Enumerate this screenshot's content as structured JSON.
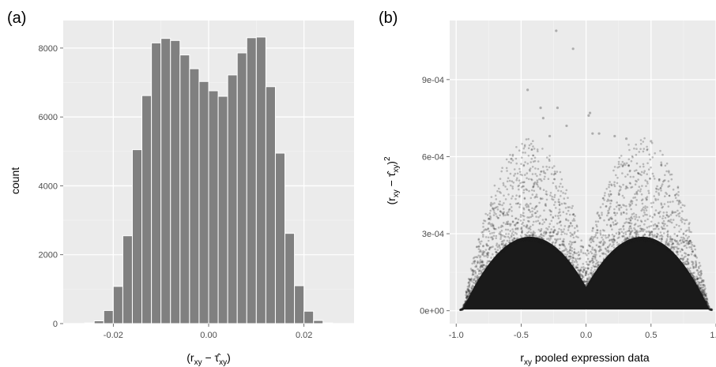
{
  "chart_data": [
    {
      "panel_tag": "(a)",
      "type": "bar",
      "ylabel": "count",
      "xlabel_parts": [
        "(r",
        "xy",
        " − ",
        "τ̂",
        "xy",
        ")"
      ],
      "xlim": [
        -0.0305,
        0.0305
      ],
      "ylim": [
        0,
        8800
      ],
      "xticks": [
        -0.02,
        0.0,
        0.02
      ],
      "xtick_labels": [
        "-0.02",
        "0.00",
        "0.02"
      ],
      "yticks": [
        0,
        2000,
        4000,
        6000,
        8000
      ],
      "ytick_labels": [
        "0",
        "2000",
        "4000",
        "6000",
        "8000"
      ],
      "bin_width": 0.002,
      "bin_centers": [
        -0.027,
        -0.025,
        -0.023,
        -0.021,
        -0.019,
        -0.017,
        -0.015,
        -0.013,
        -0.011,
        -0.009,
        -0.007,
        -0.005,
        -0.003,
        -0.001,
        0.001,
        0.003,
        0.005,
        0.007,
        0.009,
        0.011,
        0.013,
        0.015,
        0.017,
        0.019,
        0.021,
        0.023,
        0.025,
        0.027
      ],
      "values": [
        0,
        20,
        80,
        380,
        1080,
        2550,
        5050,
        6620,
        8150,
        8280,
        8220,
        7800,
        7400,
        7030,
        6760,
        6600,
        7220,
        7860,
        8300,
        8320,
        6880,
        4950,
        2620,
        1100,
        360,
        90,
        20,
        0
      ],
      "grid": true
    },
    {
      "panel_tag": "(b)",
      "type": "scatter",
      "ylabel_parts": [
        "(r",
        "xy",
        " − ",
        "τ̂",
        "xy",
        ")",
        "2"
      ],
      "xlabel_parts": [
        "r",
        "xy",
        "  pooled expression data"
      ],
      "xlim": [
        -1.05,
        1.0
      ],
      "ylim": [
        -5e-05,
        0.00113
      ],
      "xticks": [
        -1.0,
        -0.5,
        0.0,
        0.5,
        1.0
      ],
      "xtick_labels": [
        "-1.0",
        "-0.5",
        "0.0",
        "0.5",
        "1.0"
      ],
      "yticks": [
        0,
        0.0003,
        0.0006,
        0.0009
      ],
      "ytick_labels": [
        "0e+00",
        "3e-04",
        "6e-04",
        "9e-04"
      ],
      "outliers": [
        {
          "x": -0.23,
          "y": 0.00109
        },
        {
          "x": -0.1,
          "y": 0.00102
        },
        {
          "x": -0.45,
          "y": 0.00086
        },
        {
          "x": -0.35,
          "y": 0.00079
        },
        {
          "x": -0.22,
          "y": 0.00079
        },
        {
          "x": 0.03,
          "y": 0.00077
        },
        {
          "x": 0.02,
          "y": 0.00076
        },
        {
          "x": -0.33,
          "y": 0.00075
        },
        {
          "x": -0.15,
          "y": 0.00072
        },
        {
          "x": 0.1,
          "y": 0.00069
        },
        {
          "x": 0.22,
          "y": 0.00068
        },
        {
          "x": 0.31,
          "y": 0.00067
        },
        {
          "x": 0.5,
          "y": 0.00066
        },
        {
          "x": -0.28,
          "y": 0.00068
        },
        {
          "x": 0.05,
          "y": 0.00069
        }
      ],
      "point_color": "#1a1a1a",
      "grid": true
    }
  ]
}
